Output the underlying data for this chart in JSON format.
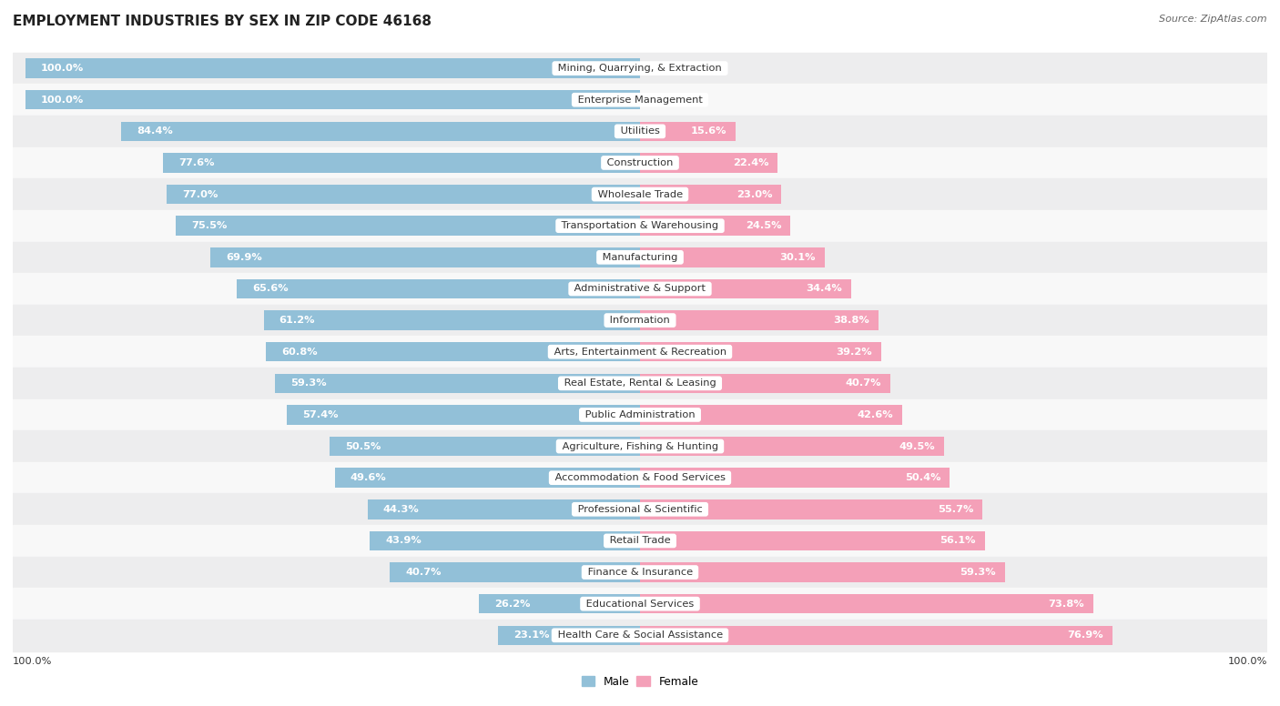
{
  "title": "EMPLOYMENT INDUSTRIES BY SEX IN ZIP CODE 46168",
  "source": "Source: ZipAtlas.com",
  "industries": [
    "Mining, Quarrying, & Extraction",
    "Enterprise Management",
    "Utilities",
    "Construction",
    "Wholesale Trade",
    "Transportation & Warehousing",
    "Manufacturing",
    "Administrative & Support",
    "Information",
    "Arts, Entertainment & Recreation",
    "Real Estate, Rental & Leasing",
    "Public Administration",
    "Agriculture, Fishing & Hunting",
    "Accommodation & Food Services",
    "Professional & Scientific",
    "Retail Trade",
    "Finance & Insurance",
    "Educational Services",
    "Health Care & Social Assistance"
  ],
  "male_pct": [
    100.0,
    100.0,
    84.4,
    77.6,
    77.0,
    75.5,
    69.9,
    65.6,
    61.2,
    60.8,
    59.3,
    57.4,
    50.5,
    49.6,
    44.3,
    43.9,
    40.7,
    26.2,
    23.1
  ],
  "female_pct": [
    0.0,
    0.0,
    15.6,
    22.4,
    23.0,
    24.5,
    30.1,
    34.4,
    38.8,
    39.2,
    40.7,
    42.6,
    49.5,
    50.4,
    55.7,
    56.1,
    59.3,
    73.8,
    76.9
  ],
  "male_color": "#92c0d8",
  "female_color": "#f4a0b8",
  "row_colors": [
    "#ededee",
    "#f8f8f8"
  ],
  "background_color": "#ffffff",
  "title_fontsize": 11,
  "label_fontsize": 8.2,
  "source_fontsize": 8,
  "bar_height": 0.62
}
